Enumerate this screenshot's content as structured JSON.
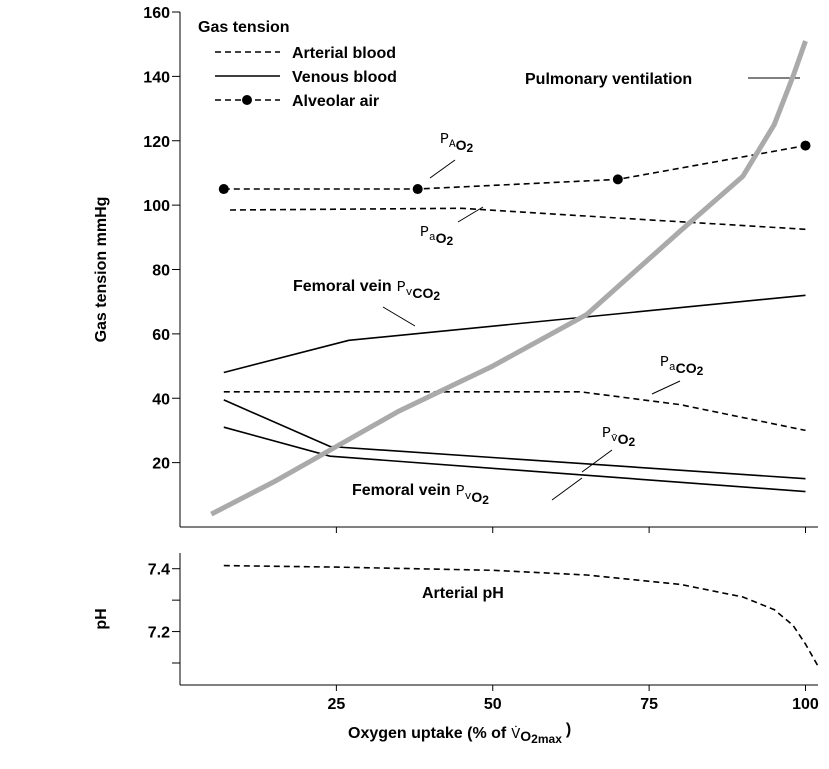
{
  "chart_data": [
    {
      "type": "line",
      "legend_title": "Gas tension",
      "legend": [
        {
          "name": "Arterial blood",
          "style": "dashed"
        },
        {
          "name": "Venous blood",
          "style": "solid"
        },
        {
          "name": "Alveolar air",
          "style": "dashed-marker"
        }
      ],
      "ylabel": "Gas tension mmHg",
      "xlim": [
        0,
        102
      ],
      "xticks": [
        25,
        50,
        75,
        100
      ],
      "ylim": [
        0,
        160
      ],
      "yticks": [
        20,
        40,
        60,
        80,
        100,
        120,
        140,
        160
      ],
      "series": [
        {
          "style": "dashed-marker",
          "color": "#000000",
          "x": [
            7,
            38,
            70,
            100
          ],
          "values": [
            105,
            105,
            108,
            118.5
          ]
        },
        {
          "style": "dashed",
          "color": "#000000",
          "x": [
            8,
            45,
            70,
            100
          ],
          "values": [
            98.5,
            99,
            96,
            92.5
          ]
        },
        {
          "style": "solid",
          "color": "#000000",
          "x": [
            7,
            27,
            100
          ],
          "values": [
            48,
            58,
            72
          ]
        },
        {
          "style": "dashed",
          "color": "#000000",
          "x": [
            7,
            64,
            80,
            100
          ],
          "values": [
            42,
            42,
            38,
            30
          ]
        },
        {
          "style": "solid",
          "color": "#000000",
          "x": [
            7,
            24,
            100
          ],
          "values": [
            39.5,
            25,
            15
          ]
        },
        {
          "style": "solid",
          "color": "#000000",
          "x": [
            7,
            24,
            100
          ],
          "values": [
            31,
            22,
            11
          ]
        },
        {
          "style": "thick",
          "color": "#aaaaaa",
          "x": [
            5,
            15,
            25,
            35,
            50,
            65,
            80,
            90,
            95,
            98,
            100
          ],
          "values": [
            4,
            14,
            25,
            36,
            50,
            66,
            92,
            109,
            125,
            140,
            151
          ]
        }
      ],
      "annotations": [
        {
          "text": "Pulmonary ventilation"
        },
        {
          "symbol": "P",
          "sub": "A",
          "chem": "O",
          "index": "2"
        },
        {
          "symbol": "P",
          "sub": "a",
          "chem": "O",
          "index": "2"
        },
        {
          "prefix": "Femoral vein",
          "symbol": "P",
          "sub": "v",
          "chem": "CO",
          "index": "2"
        },
        {
          "symbol": "P",
          "sub": "a",
          "chem": "CO",
          "index": "2"
        },
        {
          "symbol": "P",
          "sub": "v̄",
          "chem": "O",
          "index": "2"
        },
        {
          "prefix": "Femoral vein",
          "symbol": "P",
          "sub": "v",
          "chem": "O",
          "index": "2"
        }
      ]
    },
    {
      "type": "line",
      "ylabel": "pH",
      "xlim": [
        0,
        102
      ],
      "xticks": [
        25,
        50,
        75,
        100
      ],
      "ylim": [
        7.03,
        7.45
      ],
      "yticks": [
        7.2,
        7.4
      ],
      "yminor": [
        7.1,
        7.3
      ],
      "xlabel": {
        "prefix": "Oxygen uptake (% of",
        "symbol": "V̇",
        "chem": "O",
        "index": "2",
        "suffix": "max",
        "close": ")"
      },
      "annotations": [
        {
          "text": "Arterial pH"
        }
      ],
      "series": [
        {
          "style": "dashed",
          "color": "#000000",
          "x": [
            7,
            25,
            50,
            65,
            80,
            90,
            95,
            98,
            100,
            102
          ],
          "values": [
            7.41,
            7.405,
            7.395,
            7.38,
            7.35,
            7.31,
            7.27,
            7.22,
            7.16,
            7.09
          ]
        }
      ]
    }
  ]
}
